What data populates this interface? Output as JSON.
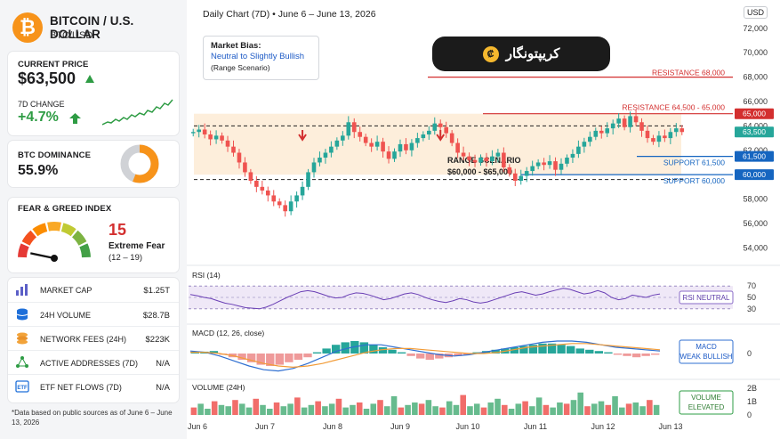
{
  "header": {
    "title": "BITCOIN / U.S. DOLLAR",
    "pair": "BTC/USD",
    "logo_symbol": "₿"
  },
  "price_card": {
    "label": "CURRENT PRICE",
    "price": "$63,500",
    "change_label": "7D CHANGE",
    "change": "+4.7%"
  },
  "dominance": {
    "label": "BTC DOMINANCE",
    "value": "55.9%",
    "fraction": 0.559
  },
  "fear_greed": {
    "label": "FEAR & GREED INDEX",
    "value": "15",
    "status": "Extreme Fear",
    "range": "(12 – 19)",
    "level": 15
  },
  "metrics": [
    {
      "icon": "bar-chart-icon",
      "label": "MARKET CAP",
      "value": "$1.25T"
    },
    {
      "icon": "database-icon",
      "label": "24H VOLUME",
      "value": "$28.7B"
    },
    {
      "icon": "coins-icon",
      "label": "NETWORK FEES (24H)",
      "value": "$223K"
    },
    {
      "icon": "network-icon",
      "label": "ACTIVE ADDRESSES (7D)",
      "value": "N/A"
    },
    {
      "icon": "etf-icon",
      "label": "ETF NET FLOWS (7D)",
      "value": "N/A"
    }
  ],
  "footnote": "*Data based on public sources as of June 6 – June 13, 2026",
  "chart_header": {
    "title": "Daily Chart (7D)   •   June 6 – June 13, 2026",
    "currency": "USD"
  },
  "bias": {
    "title": "Market Bias:",
    "value": "Neutral to Slightly Bullish",
    "note": "(Range Scenario)"
  },
  "brand": {
    "name": "کریپتونگار",
    "coin_symbol": "₡"
  },
  "colors": {
    "bull": "#26a69a",
    "bear": "#ef5350",
    "resistance": "#d32f2f",
    "support": "#1565c0",
    "accent": "#f7931a"
  },
  "chart_data": [
    {
      "type": "candlestick",
      "title": "",
      "x_ticks": [
        "Jun 6",
        "Jun 7",
        "Jun 8",
        "Jun 9",
        "Jun 10",
        "Jun 11",
        "Jun 12",
        "Jun 13"
      ],
      "y_ticks": [
        54000,
        56000,
        58000,
        60000,
        62000,
        64000,
        66000,
        68000,
        70000,
        72000
      ],
      "ylim": [
        53000,
        72500
      ],
      "last_price": 63500,
      "levels": [
        {
          "label": "RESISTANCE 68,000",
          "value": 68000,
          "kind": "resistance",
          "tag": ""
        },
        {
          "label": "RESISTANCE 64,500 - 65,000",
          "value": 65000,
          "kind": "resistance",
          "tag": "65,000"
        },
        {
          "label": "SUPPORT 61,500",
          "value": 61500,
          "kind": "support",
          "tag": "61,500"
        },
        {
          "label": "SUPPORT 60,000",
          "value": 60000,
          "kind": "support",
          "tag": "60,000"
        }
      ],
      "range_box": {
        "label": "RANGE SCENARIO",
        "range_text": "$60,000 - $65,000",
        "low": 60000,
        "high": 65000
      },
      "closes": [
        63500,
        63700,
        63300,
        62900,
        63200,
        62800,
        62300,
        61800,
        61000,
        60200,
        59500,
        59000,
        58700,
        58300,
        57800,
        57500,
        57000,
        57800,
        58300,
        59000,
        60200,
        61000,
        61400,
        61800,
        62300,
        62800,
        63200,
        64300,
        63500,
        63100,
        62600,
        62300,
        62700,
        61900,
        61300,
        61900,
        62500,
        62000,
        62600,
        63000,
        63300,
        63600,
        64200,
        63900,
        63400,
        62600,
        61800,
        61500,
        61200,
        61000,
        61400,
        61100,
        61500,
        61800,
        60600,
        60100,
        59500,
        59900,
        60300,
        60700,
        61000,
        60800,
        61100,
        60400,
        60900,
        61400,
        61700,
        62300,
        62700,
        63100,
        63600,
        63400,
        63800,
        64200,
        64600,
        63900,
        64800,
        64300,
        63600,
        63000,
        62700,
        63200,
        63000,
        63500,
        63800,
        63500
      ],
      "marked_candles": [
        19,
        43
      ]
    },
    {
      "type": "line",
      "title": "RSI (14)",
      "y_ticks": [
        30,
        50,
        70
      ],
      "ylim": [
        25,
        75
      ],
      "badge": "RSI NEUTRAL",
      "values": [
        55,
        53,
        50,
        48,
        44,
        40,
        38,
        35,
        32,
        31,
        30,
        33,
        38,
        44,
        50,
        55,
        60,
        62,
        60,
        56,
        52,
        49,
        50,
        55,
        58,
        57,
        54,
        50,
        46,
        48,
        52,
        56,
        58,
        55,
        50,
        46,
        43,
        41,
        44,
        48,
        46,
        42,
        40,
        42,
        46,
        50,
        54,
        58,
        60,
        57,
        54,
        56,
        60,
        63,
        66,
        64,
        60,
        56,
        58,
        62,
        58,
        50,
        46,
        48,
        54,
        52,
        50,
        54,
        56
      ]
    },
    {
      "type": "bar+line",
      "title": "MACD (12, 26, close)",
      "y_ticks": [
        0
      ],
      "badge": "MACD\nWEAK BULLISH",
      "histogram": [
        0.1,
        0.15,
        0.2,
        -0.1,
        -0.3,
        -0.5,
        -0.7,
        -0.9,
        -1.0,
        -0.9,
        -0.7,
        -0.5,
        -0.3,
        0.1,
        0.4,
        0.7,
        0.9,
        1.0,
        0.9,
        0.7,
        0.5,
        0.3,
        0.1,
        -0.2,
        -0.4,
        -0.5,
        -0.4,
        -0.3,
        -0.2,
        -0.1,
        0.1,
        0.2,
        0.3,
        0.4,
        0.5,
        0.6,
        0.7,
        0.8,
        0.8,
        0.7,
        0.6,
        0.4,
        0.3,
        0.2,
        0.1,
        -0.1,
        -0.2,
        -0.3,
        -0.2,
        -0.1
      ],
      "macd": [
        0.2,
        0.1,
        -0.2,
        -0.6,
        -1.0,
        -1.3,
        -1.4,
        -1.2,
        -0.8,
        -0.3,
        0.2,
        0.5,
        0.7,
        0.7,
        0.5,
        0.3,
        0.1,
        -0.1,
        -0.2,
        -0.1,
        0.1,
        0.3,
        0.5,
        0.7,
        0.9,
        1.0,
        1.0,
        0.9,
        0.7,
        0.5,
        0.4,
        0.3,
        0.2
      ],
      "signal": [
        0.1,
        0.1,
        0.0,
        -0.2,
        -0.5,
        -0.8,
        -1.0,
        -1.1,
        -1.0,
        -0.8,
        -0.5,
        -0.2,
        0.1,
        0.3,
        0.4,
        0.4,
        0.3,
        0.2,
        0.1,
        0.0,
        0.0,
        0.1,
        0.3,
        0.5,
        0.6,
        0.7,
        0.8,
        0.8,
        0.7,
        0.6,
        0.5,
        0.4,
        0.3
      ]
    },
    {
      "type": "bar",
      "title": "VOLUME (24H)",
      "y_ticks": [
        "2B",
        "1B",
        "0"
      ],
      "badge": "VOLUME\nELEVATED",
      "values": [
        0.6,
        0.9,
        0.5,
        1.1,
        0.8,
        0.7,
        1.2,
        0.9,
        0.6,
        1.3,
        0.8,
        0.5,
        1.0,
        0.7,
        0.9,
        1.4,
        0.6,
        0.8,
        1.1,
        0.7,
        0.9,
        1.3,
        0.6,
        0.8,
        1.0,
        0.5,
        0.9,
        1.2,
        0.7,
        1.5,
        0.6,
        0.8,
        1.0,
        0.9,
        1.2,
        0.7,
        0.6,
        1.1,
        0.8,
        1.6,
        0.7,
        0.9,
        0.6,
        1.0,
        1.3,
        0.8,
        0.5,
        0.9,
        1.1,
        0.7,
        1.4,
        0.8,
        0.6,
        1.0,
        0.9,
        1.2,
        1.8,
        0.7,
        0.9,
        1.1,
        0.8,
        1.5,
        0.6,
        0.9,
        1.0,
        0.7,
        1.2,
        0.8
      ]
    }
  ]
}
